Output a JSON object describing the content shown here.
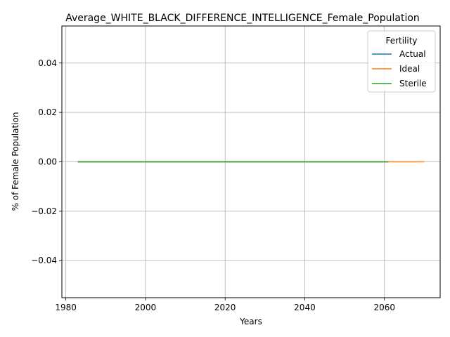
{
  "chart_data": {
    "type": "line",
    "title": "Average_WHITE_BLACK_DIFFERENCE_INTELLIGENCE_Female_Population",
    "xlabel": "Years",
    "ylabel": "% of Female Population",
    "xlim": [
      1979,
      2074
    ],
    "ylim": [
      -0.055,
      0.055
    ],
    "x_ticks": [
      1980,
      2000,
      2020,
      2040,
      2060
    ],
    "x_tick_labels": [
      "1980",
      "2000",
      "2020",
      "2040",
      "2060"
    ],
    "y_ticks": [
      -0.04,
      -0.02,
      0.0,
      0.02,
      0.04
    ],
    "y_tick_labels": [
      "−0.04",
      "−0.02",
      "0.00",
      "0.02",
      "0.04"
    ],
    "grid": true,
    "legend": {
      "title": "Fertility",
      "position": "top-right"
    },
    "series": [
      {
        "name": "Actual",
        "color": "#1f77b4",
        "x": [
          1983,
          2061
        ],
        "y": [
          0,
          0
        ]
      },
      {
        "name": "Ideal",
        "color": "#ff7f0e",
        "x": [
          1983,
          2070
        ],
        "y": [
          0,
          0
        ]
      },
      {
        "name": "Sterile",
        "color": "#2ca02c",
        "x": [
          1983,
          2061
        ],
        "y": [
          0,
          0
        ]
      }
    ]
  }
}
